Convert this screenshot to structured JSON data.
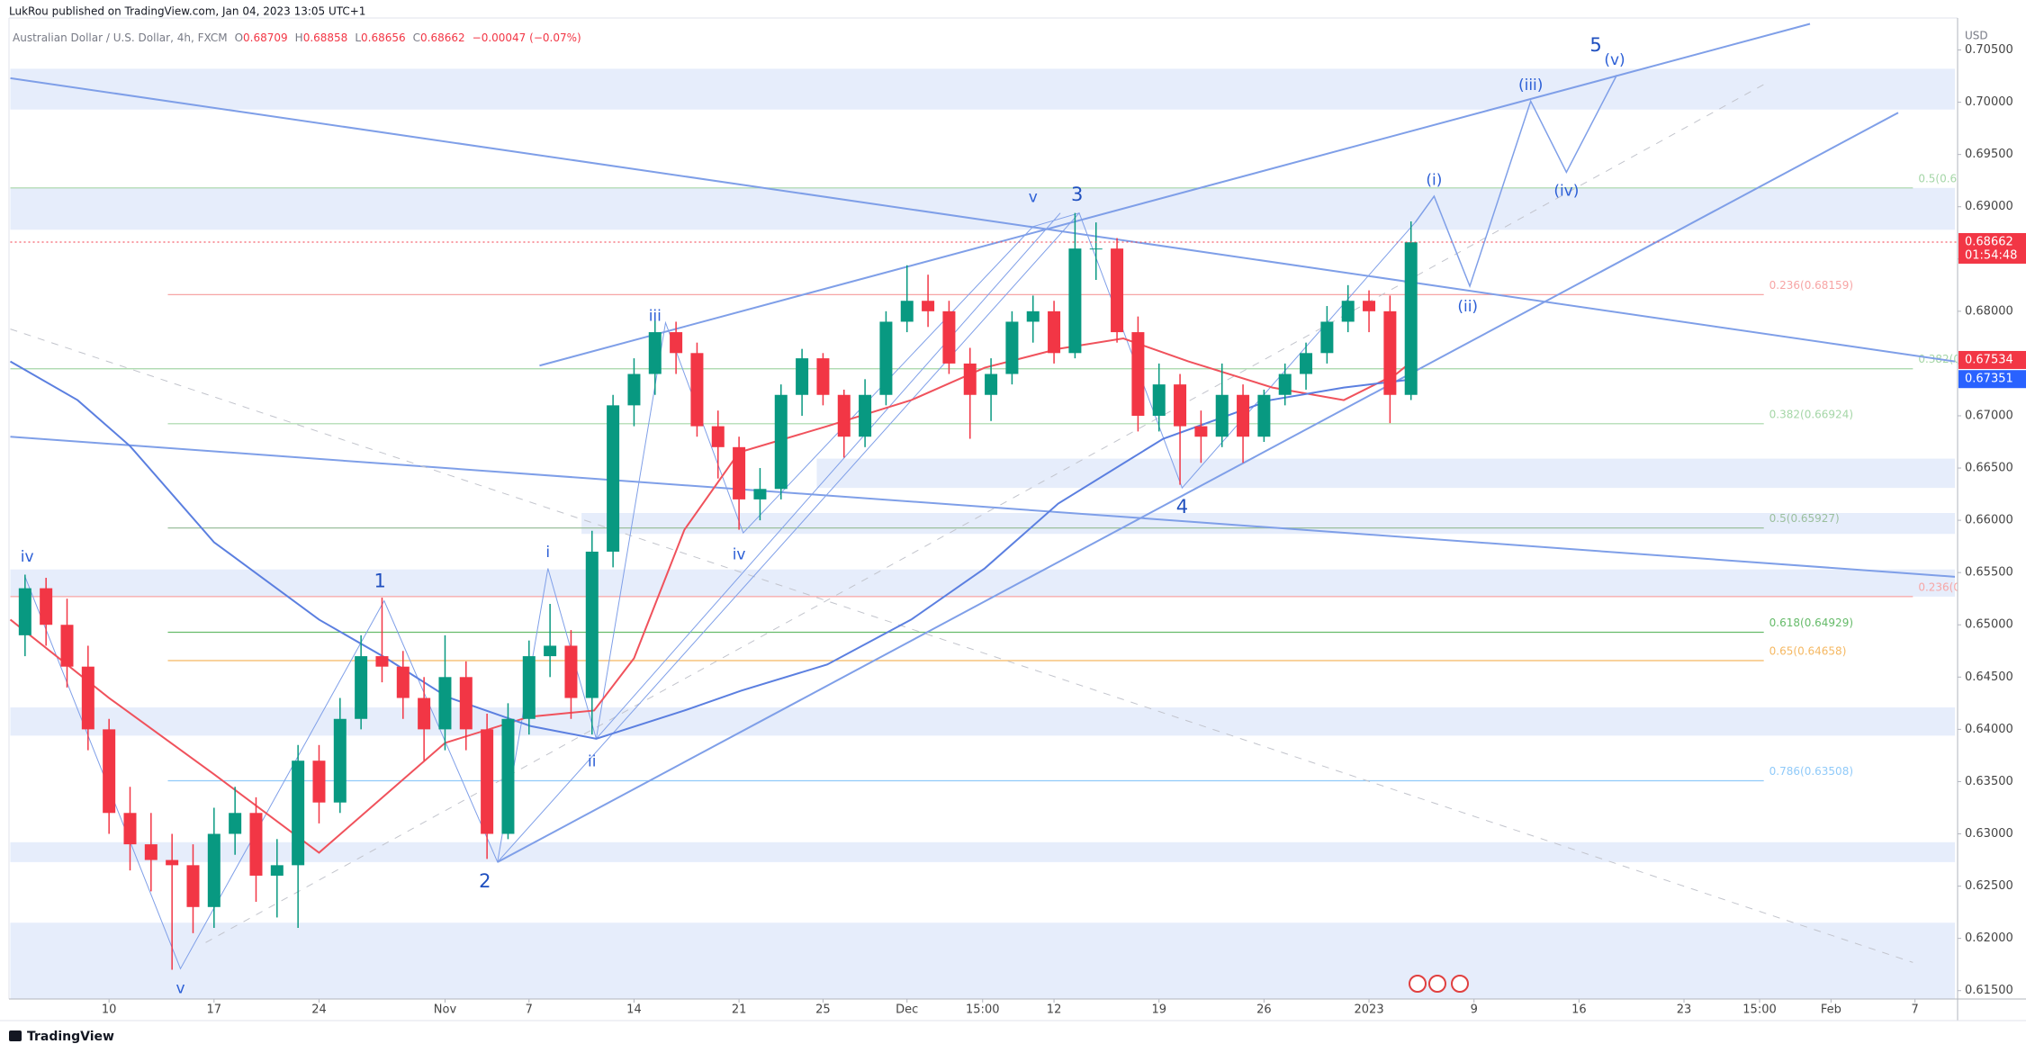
{
  "header": {
    "publisher": "LukRou published on TradingView.com, Jan 04, 2023 13:05 UTC+1"
  },
  "footer": {
    "brand": "TradingView"
  },
  "chart_data": {
    "type": "candlestick",
    "symbol": "Australian Dollar / U.S. Dollar, 4h, FXCM",
    "ohlc_items": [
      {
        "key": "O",
        "value": "0.68709"
      },
      {
        "key": "H",
        "value": "0.68858"
      },
      {
        "key": "L",
        "value": "0.68656"
      },
      {
        "key": "C",
        "value": "0.68662"
      }
    ],
    "change": "−0.00047 (−0.07%)",
    "currency": "USD",
    "up_color": "#089981",
    "down_color": "#f23645",
    "x": [
      -4,
      -3,
      -2,
      -1,
      0,
      1,
      2,
      3,
      4,
      5,
      6,
      7,
      8,
      9,
      10,
      11,
      12,
      13,
      14,
      15,
      16,
      17,
      18,
      19,
      20,
      21,
      22,
      23,
      24,
      25,
      26,
      27,
      28,
      29,
      30,
      31,
      32,
      33,
      34,
      35,
      36,
      37,
      38,
      39,
      40,
      41,
      42,
      43,
      44,
      45,
      46,
      47,
      48,
      49,
      50,
      51,
      52,
      53,
      54,
      55,
      56,
      57,
      58,
      59,
      60,
      61,
      62
    ],
    "open": [
      0.649,
      0.6535,
      0.65,
      0.646,
      0.64,
      0.632,
      0.629,
      0.6275,
      0.627,
      0.623,
      0.63,
      0.632,
      0.626,
      0.627,
      0.637,
      0.633,
      0.641,
      0.647,
      0.646,
      0.643,
      0.64,
      0.645,
      0.64,
      0.63,
      0.641,
      0.647,
      0.648,
      0.643,
      0.657,
      0.671,
      0.674,
      0.678,
      0.676,
      0.669,
      0.667,
      0.662,
      0.663,
      0.672,
      0.6755,
      0.672,
      0.668,
      0.672,
      0.679,
      0.681,
      0.68,
      0.675,
      0.672,
      0.674,
      0.679,
      0.68,
      0.676,
      0.686,
      0.686,
      0.678,
      0.67,
      0.673,
      0.669,
      0.668,
      0.672,
      0.668,
      0.672,
      0.674,
      0.676,
      0.679,
      0.681,
      0.68,
      0.672
    ],
    "high": [
      0.6548,
      0.6545,
      0.6525,
      0.648,
      0.641,
      0.6345,
      0.632,
      0.63,
      0.629,
      0.6325,
      0.6345,
      0.6335,
      0.6295,
      0.6385,
      0.6385,
      0.643,
      0.649,
      0.6526,
      0.6475,
      0.645,
      0.649,
      0.6465,
      0.6415,
      0.6425,
      0.6485,
      0.652,
      0.6495,
      0.659,
      0.672,
      0.6755,
      0.6793,
      0.679,
      0.677,
      0.6705,
      0.668,
      0.665,
      0.673,
      0.6764,
      0.676,
      0.6725,
      0.6735,
      0.68,
      0.6844,
      0.6835,
      0.681,
      0.6765,
      0.6755,
      0.68,
      0.6815,
      0.681,
      0.6894,
      0.6885,
      0.687,
      0.6795,
      0.675,
      0.674,
      0.6705,
      0.675,
      0.673,
      0.6725,
      0.675,
      0.677,
      0.6805,
      0.6825,
      0.682,
      0.6815,
      0.6886
    ],
    "low": [
      0.647,
      0.648,
      0.644,
      0.638,
      0.63,
      0.6265,
      0.6245,
      0.617,
      0.6205,
      0.621,
      0.628,
      0.6235,
      0.622,
      0.621,
      0.631,
      0.632,
      0.64,
      0.6445,
      0.641,
      0.637,
      0.638,
      0.638,
      0.6276,
      0.6295,
      0.6395,
      0.645,
      0.641,
      0.6395,
      0.6555,
      0.669,
      0.672,
      0.674,
      0.668,
      0.664,
      0.6591,
      0.66,
      0.662,
      0.67,
      0.671,
      0.666,
      0.667,
      0.671,
      0.678,
      0.6785,
      0.674,
      0.6678,
      0.6695,
      0.673,
      0.677,
      0.675,
      0.6755,
      0.683,
      0.677,
      0.6685,
      0.6685,
      0.6634,
      0.6655,
      0.667,
      0.6655,
      0.6675,
      0.671,
      0.6725,
      0.675,
      0.678,
      0.678,
      0.6693,
      0.6715
    ],
    "close": [
      0.6535,
      0.65,
      0.646,
      0.64,
      0.632,
      0.629,
      0.6275,
      0.627,
      0.623,
      0.63,
      0.632,
      0.626,
      0.627,
      0.637,
      0.633,
      0.641,
      0.647,
      0.646,
      0.643,
      0.64,
      0.645,
      0.64,
      0.63,
      0.641,
      0.647,
      0.648,
      0.643,
      0.657,
      0.671,
      0.674,
      0.678,
      0.676,
      0.669,
      0.667,
      0.662,
      0.663,
      0.672,
      0.6755,
      0.672,
      0.668,
      0.672,
      0.679,
      0.681,
      0.68,
      0.675,
      0.672,
      0.674,
      0.679,
      0.68,
      0.676,
      0.686,
      0.686,
      0.678,
      0.67,
      0.673,
      0.669,
      0.668,
      0.672,
      0.668,
      0.672,
      0.674,
      0.676,
      0.679,
      0.681,
      0.68,
      0.672,
      0.6866
    ],
    "xlim": [
      -4.7,
      87.9
    ],
    "ylim": [
      0.6142,
      0.7078
    ],
    "grid": false,
    "xticks": [
      {
        "value": 0,
        "label": "10"
      },
      {
        "value": 5,
        "label": "17"
      },
      {
        "value": 10,
        "label": "24"
      },
      {
        "value": 16,
        "label": "Nov"
      },
      {
        "value": 20,
        "label": "7"
      },
      {
        "value": 25,
        "label": "14"
      },
      {
        "value": 30,
        "label": "21"
      },
      {
        "value": 34,
        "label": "25"
      },
      {
        "value": 38,
        "label": "Dec"
      },
      {
        "value": 41.6,
        "label": "15:00"
      },
      {
        "value": 45,
        "label": "12"
      },
      {
        "value": 50,
        "label": "19"
      },
      {
        "value": 55,
        "label": "26"
      },
      {
        "value": 60,
        "label": "2023"
      },
      {
        "value": 65,
        "label": "9"
      },
      {
        "value": 70,
        "label": "16"
      },
      {
        "value": 75,
        "label": "23"
      },
      {
        "value": 78.6,
        "label": "15:00"
      },
      {
        "value": 82,
        "label": "Feb"
      },
      {
        "value": 86,
        "label": "7"
      }
    ],
    "yticks": [
      {
        "value": 0.615,
        "label": "0.61500"
      },
      {
        "value": 0.62,
        "label": "0.62000"
      },
      {
        "value": 0.625,
        "label": "0.62500"
      },
      {
        "value": 0.63,
        "label": "0.63000"
      },
      {
        "value": 0.635,
        "label": "0.63500"
      },
      {
        "value": 0.64,
        "label": "0.64000"
      },
      {
        "value": 0.645,
        "label": "0.64500"
      },
      {
        "value": 0.65,
        "label": "0.65000"
      },
      {
        "value": 0.655,
        "label": "0.65500"
      },
      {
        "value": 0.66,
        "label": "0.66000"
      },
      {
        "value": 0.665,
        "label": "0.66500"
      },
      {
        "value": 0.67,
        "label": "0.67000"
      },
      {
        "value": 0.675,
        "label": "0.67500"
      },
      {
        "value": 0.68,
        "label": "0.68000"
      },
      {
        "value": 0.685,
        "label": "0.68500"
      },
      {
        "value": 0.69,
        "label": "0.69000"
      },
      {
        "value": 0.695,
        "label": "0.69500"
      },
      {
        "value": 0.7,
        "label": "0.70000"
      },
      {
        "value": 0.705,
        "label": "0.70500"
      }
    ],
    "moving_averages": [
      {
        "color": "#f0525c",
        "x": [
          -4.7,
          0,
          5,
          10,
          13.2,
          16,
          20,
          23.1,
          25,
          27.4,
          30,
          34.2,
          38.2,
          41.7,
          45.2,
          48.3,
          51.4,
          55.4,
          58.8,
          61.3,
          62.1
        ],
        "values": [
          0.6505,
          0.643,
          0.6357,
          0.6282,
          0.6338,
          0.6387,
          0.6412,
          0.6418,
          0.6468,
          0.6591,
          0.6665,
          0.669,
          0.6715,
          0.6746,
          0.6764,
          0.6774,
          0.6752,
          0.6727,
          0.6715,
          0.674,
          0.6753
        ]
      },
      {
        "color": "#5b7fe0",
        "x": [
          -4.7,
          -1.5,
          1,
          5,
          10,
          13.2,
          16.1,
          20.1,
          23.2,
          27.4,
          30.1,
          34.2,
          38.2,
          41.7,
          45.2,
          50.2,
          55.3,
          58.8,
          62.1
        ],
        "values": [
          0.6752,
          0.6715,
          0.6671,
          0.6579,
          0.6505,
          0.6468,
          0.6431,
          0.6403,
          0.6391,
          0.6418,
          0.6437,
          0.6462,
          0.6505,
          0.6554,
          0.6616,
          0.6678,
          0.6715,
          0.6727,
          0.6735
        ]
      }
    ],
    "price_tags": [
      {
        "value": 0.68662,
        "color": "#f23645",
        "countdown": "01:54:48"
      },
      {
        "value": 0.67534,
        "color": "#f23645"
      },
      {
        "value": 0.67351,
        "color": "#2962ff"
      }
    ],
    "fib_levels": [
      {
        "label": "0.236(0.68159)",
        "value": 0.68159,
        "color": "#f7a5a5",
        "from": 2.8,
        "to": 78.8
      },
      {
        "label": "0.382(0.66924)",
        "value": 0.66924,
        "color": "#a5d6a7",
        "from": 2.8,
        "to": 78.8
      },
      {
        "label": "0.5(0.65927)",
        "value": 0.65927,
        "color": "#9bbf9d",
        "from": 2.8,
        "to": 78.8
      },
      {
        "label": "0.618(0.64929)",
        "value": 0.64929,
        "color": "#66bb6a",
        "from": 2.8,
        "to": 78.8
      },
      {
        "label": "0.65(0.64658)",
        "value": 0.64658,
        "color": "#f5b862",
        "from": 2.8,
        "to": 78.8
      },
      {
        "label": "0.786(0.63508)",
        "value": 0.63508,
        "color": "#90caf9",
        "from": 2.8,
        "to": 78.8
      },
      {
        "label": "0.5(0.6",
        "value": 0.6918,
        "color": "#a5d6a7",
        "from": -4.7,
        "to": 85.9
      },
      {
        "label": "0.382(0",
        "value": 0.6745,
        "color": "#a5d6a7",
        "from": -4.7,
        "to": 85.9
      },
      {
        "label": "0.236(0",
        "value": 0.6527,
        "color": "#f7a5a5",
        "from": -4.7,
        "to": 85.9
      }
    ],
    "zones": [
      {
        "top": 0.7032,
        "bottom": 0.6993,
        "from": -4.7,
        "to": 87.9
      },
      {
        "top": 0.6918,
        "bottom": 0.6878,
        "from": -4.7,
        "to": 87.9
      },
      {
        "top": 0.6659,
        "bottom": 0.6631,
        "from": 33.7,
        "to": 87.9
      },
      {
        "top": 0.6607,
        "bottom": 0.6587,
        "from": 22.5,
        "to": 87.9
      },
      {
        "top": 0.6553,
        "bottom": 0.6527,
        "from": -4.7,
        "to": 87.9
      },
      {
        "top": 0.6421,
        "bottom": 0.6394,
        "from": -4.7,
        "to": 87.9
      },
      {
        "top": 0.6292,
        "bottom": 0.6273,
        "from": -4.7,
        "to": 87.9
      },
      {
        "top": 0.6215,
        "bottom": 0.6142,
        "from": -4.7,
        "to": 87.9
      }
    ],
    "trendlines": [
      {
        "x": [
          20.5,
          81.0
        ],
        "y": [
          0.6748,
          0.7075
        ],
        "style": "solid",
        "width": 2
      },
      {
        "x": [
          18.5,
          85.2
        ],
        "y": [
          0.6273,
          0.699
        ],
        "style": "solid",
        "width": 2
      },
      {
        "x": [
          -4.7,
          87.9
        ],
        "y": [
          0.7023,
          0.6752
        ],
        "style": "solid",
        "width": 2
      },
      {
        "x": [
          -4.7,
          87.9
        ],
        "y": [
          0.668,
          0.6546
        ],
        "style": "solid",
        "width": 2
      },
      {
        "x": [
          -4.7,
          85.9
        ],
        "y": [
          0.6783,
          0.6177
        ],
        "style": "dashed",
        "width": 1
      },
      {
        "x": [
          4.6,
          78.8
        ],
        "y": [
          0.6196,
          0.7017
        ],
        "style": "dashed",
        "width": 1
      },
      {
        "x": [
          23.2,
          45.3
        ],
        "y": [
          0.6391,
          0.6894
        ],
        "style": "solid",
        "width": 1
      },
      {
        "x": [
          -4.0,
          3.4,
          13.1,
          18.5,
          46.2,
          51.1,
          62.2
        ],
        "y": [
          0.6546,
          0.6171,
          0.6523,
          0.6273,
          0.6894,
          0.6631,
          0.6885
        ],
        "style": "solid",
        "width": 1
      },
      {
        "x": [
          18.5,
          20.9,
          23.2,
          26.5,
          30.2,
          44.0,
          46.2
        ],
        "y": [
          0.6273,
          0.6554,
          0.6391,
          0.6789,
          0.6588,
          0.6881,
          0.6894
        ],
        "style": "solid",
        "width": 1
      },
      {
        "x": [
          62.2,
          63.1,
          64.8,
          67.7,
          69.4,
          71.8
        ],
        "y": [
          0.6885,
          0.691,
          0.6824,
          0.7001,
          0.6933,
          0.7026
        ],
        "style": "solid",
        "width": 1.5
      }
    ],
    "trend_color": "#7f9fe8",
    "dash_color": "#c2c4cc",
    "wave_labels": [
      {
        "text": "iv",
        "x": -3.9,
        "y": 0.6565,
        "size": "small"
      },
      {
        "text": "v",
        "x": 3.4,
        "y": 0.6152,
        "size": "small"
      },
      {
        "text": "1",
        "x": 12.9,
        "y": 0.6541,
        "size": "large"
      },
      {
        "text": "2",
        "x": 17.9,
        "y": 0.6254,
        "size": "large"
      },
      {
        "text": "i",
        "x": 20.9,
        "y": 0.6569,
        "size": "small"
      },
      {
        "text": "ii",
        "x": 23.0,
        "y": 0.6369,
        "size": "small"
      },
      {
        "text": "iii",
        "x": 26.0,
        "y": 0.6795,
        "size": "small"
      },
      {
        "text": "iv",
        "x": 30.0,
        "y": 0.6567,
        "size": "small"
      },
      {
        "text": "v",
        "x": 44.0,
        "y": 0.6909,
        "size": "small"
      },
      {
        "text": "3",
        "x": 46.1,
        "y": 0.6911,
        "size": "large"
      },
      {
        "text": "4",
        "x": 51.1,
        "y": 0.6612,
        "size": "large"
      },
      {
        "text": "(i)",
        "x": 63.1,
        "y": 0.6925,
        "size": "small"
      },
      {
        "text": "(ii)",
        "x": 64.7,
        "y": 0.6804,
        "size": "small"
      },
      {
        "text": "(iii)",
        "x": 67.7,
        "y": 0.7016,
        "size": "small"
      },
      {
        "text": "(iv)",
        "x": 69.4,
        "y": 0.6915,
        "size": "small"
      },
      {
        "text": "5",
        "x": 70.8,
        "y": 0.7054,
        "size": "large"
      },
      {
        "text": "(v)",
        "x": 71.7,
        "y": 0.704,
        "size": "small"
      }
    ]
  }
}
